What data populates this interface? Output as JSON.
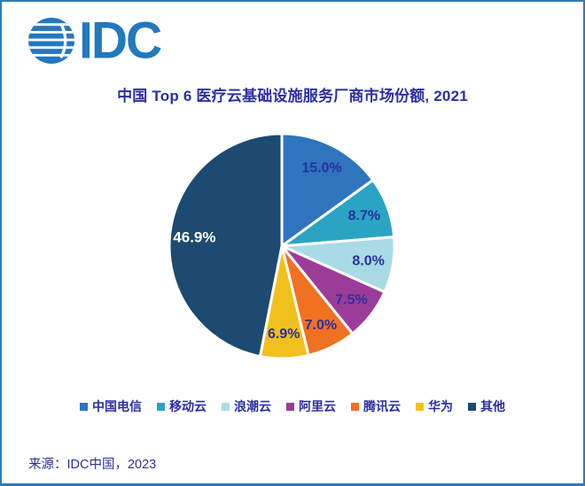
{
  "page": {
    "background": "#ffffff",
    "border_color": "#2e7abc"
  },
  "logo": {
    "text": "IDC",
    "color": "#2478bc",
    "globe_icon_color": "#2478bc"
  },
  "header": {
    "title": "中国 Top 6 医疗云基础设施服务厂商市场份额, 2021",
    "title_color": "#2b2fa0"
  },
  "chart_data": {
    "type": "pie",
    "title": "中国 Top 6 医疗云基础设施服务厂商市场份额, 2021",
    "start_angle_deg": 0,
    "direction": "clockwise",
    "label_format": "one_decimal_percent",
    "legend_position": "bottom",
    "slice_gap_color": "#ffffff",
    "slices": [
      {
        "label": "中国电信",
        "value": 15.0,
        "display": "15.0%",
        "color": "#2e75bd",
        "text_color": "#2b2fa0"
      },
      {
        "label": "移动云",
        "value": 8.7,
        "display": "8.7%",
        "color": "#2ba3c2",
        "text_color": "#2b2fa0"
      },
      {
        "label": "浪潮云",
        "value": 8.0,
        "display": "8.0%",
        "color": "#a9dbe6",
        "text_color": "#2b2fa0"
      },
      {
        "label": "阿里云",
        "value": 7.5,
        "display": "7.5%",
        "color": "#9b3c99",
        "text_color": "#2b2fa0"
      },
      {
        "label": "腾讯云",
        "value": 7.0,
        "display": "7.0%",
        "color": "#f07121",
        "text_color": "#2b2fa0"
      },
      {
        "label": "华为",
        "value": 6.9,
        "display": "6.9%",
        "color": "#f2c01d",
        "text_color": "#2b2fa0"
      },
      {
        "label": "其他",
        "value": 46.9,
        "display": "46.9%",
        "color": "#1c4a70",
        "text_color": "#ffffff"
      }
    ]
  },
  "footer": {
    "source": "来源：IDC中国，2023"
  }
}
